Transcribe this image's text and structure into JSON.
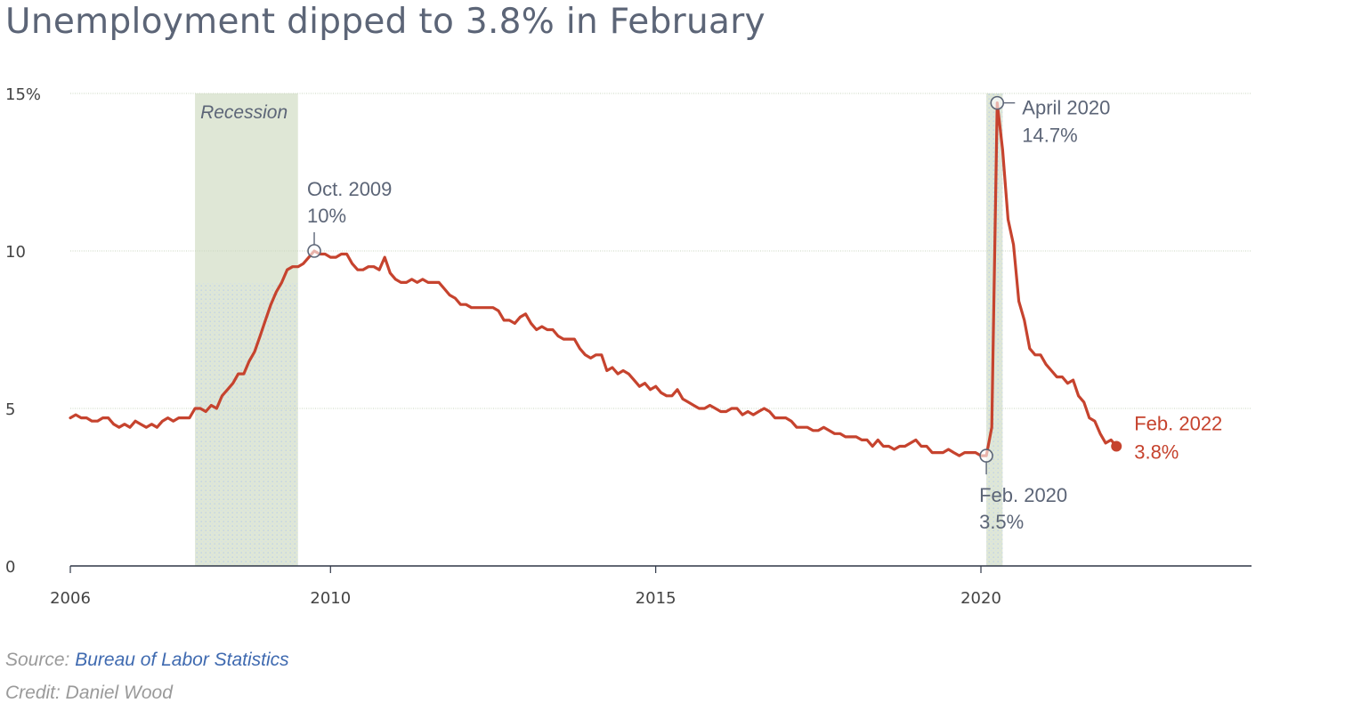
{
  "title": "Unemployment dipped to 3.8% in February",
  "footer": {
    "source_prefix": "Source: ",
    "source_link": "Bureau of Labor Statistics",
    "credit": "Credit: Daniel Wood"
  },
  "colors": {
    "line": "#c6432e",
    "recession_fill": "#dfe7d6",
    "recession_dots": "#c5d5e3",
    "grid": "#c9d6c0",
    "axis": "#2f3747",
    "annotation": "#5c6577"
  },
  "chart_data": {
    "type": "line",
    "title": "Unemployment dipped to 3.8% in February",
    "xlabel": "",
    "ylabel": "",
    "xlim": [
      2006.0,
      2022.6
    ],
    "ylim": [
      0,
      15
    ],
    "x_ticks": [
      2006,
      2010,
      2015,
      2020
    ],
    "x_tick_labels": [
      "2006",
      "2010",
      "2015",
      "2020"
    ],
    "y_ticks": [
      0,
      5,
      10,
      15
    ],
    "y_tick_labels": [
      "0",
      "5",
      "10",
      "15%"
    ],
    "grid": "horizontal",
    "recessions": [
      {
        "start": 2007.917,
        "end": 2009.5,
        "label": "Recession"
      },
      {
        "start": 2020.083,
        "end": 2020.333,
        "label": ""
      }
    ],
    "series": [
      {
        "points": [
          [
            2006.0,
            4.7
          ],
          [
            2006.083,
            4.8
          ],
          [
            2006.167,
            4.7
          ],
          [
            2006.25,
            4.7
          ],
          [
            2006.333,
            4.6
          ],
          [
            2006.417,
            4.6
          ],
          [
            2006.5,
            4.7
          ],
          [
            2006.583,
            4.7
          ],
          [
            2006.667,
            4.5
          ],
          [
            2006.75,
            4.4
          ],
          [
            2006.833,
            4.5
          ],
          [
            2006.917,
            4.4
          ],
          [
            2007.0,
            4.6
          ],
          [
            2007.083,
            4.5
          ],
          [
            2007.167,
            4.4
          ],
          [
            2007.25,
            4.5
          ],
          [
            2007.333,
            4.4
          ],
          [
            2007.417,
            4.6
          ],
          [
            2007.5,
            4.7
          ],
          [
            2007.583,
            4.6
          ],
          [
            2007.667,
            4.7
          ],
          [
            2007.75,
            4.7
          ],
          [
            2007.833,
            4.7
          ],
          [
            2007.917,
            5.0
          ],
          [
            2008.0,
            5.0
          ],
          [
            2008.083,
            4.9
          ],
          [
            2008.167,
            5.1
          ],
          [
            2008.25,
            5.0
          ],
          [
            2008.333,
            5.4
          ],
          [
            2008.417,
            5.6
          ],
          [
            2008.5,
            5.8
          ],
          [
            2008.583,
            6.1
          ],
          [
            2008.667,
            6.1
          ],
          [
            2008.75,
            6.5
          ],
          [
            2008.833,
            6.8
          ],
          [
            2008.917,
            7.3
          ],
          [
            2009.0,
            7.8
          ],
          [
            2009.083,
            8.3
          ],
          [
            2009.167,
            8.7
          ],
          [
            2009.25,
            9.0
          ],
          [
            2009.333,
            9.4
          ],
          [
            2009.417,
            9.5
          ],
          [
            2009.5,
            9.5
          ],
          [
            2009.583,
            9.6
          ],
          [
            2009.667,
            9.8
          ],
          [
            2009.75,
            10.0
          ],
          [
            2009.833,
            9.9
          ],
          [
            2009.917,
            9.9
          ],
          [
            2010.0,
            9.8
          ],
          [
            2010.083,
            9.8
          ],
          [
            2010.167,
            9.9
          ],
          [
            2010.25,
            9.9
          ],
          [
            2010.333,
            9.6
          ],
          [
            2010.417,
            9.4
          ],
          [
            2010.5,
            9.4
          ],
          [
            2010.583,
            9.5
          ],
          [
            2010.667,
            9.5
          ],
          [
            2010.75,
            9.4
          ],
          [
            2010.833,
            9.8
          ],
          [
            2010.917,
            9.3
          ],
          [
            2011.0,
            9.1
          ],
          [
            2011.083,
            9.0
          ],
          [
            2011.167,
            9.0
          ],
          [
            2011.25,
            9.1
          ],
          [
            2011.333,
            9.0
          ],
          [
            2011.417,
            9.1
          ],
          [
            2011.5,
            9.0
          ],
          [
            2011.583,
            9.0
          ],
          [
            2011.667,
            9.0
          ],
          [
            2011.75,
            8.8
          ],
          [
            2011.833,
            8.6
          ],
          [
            2011.917,
            8.5
          ],
          [
            2012.0,
            8.3
          ],
          [
            2012.083,
            8.3
          ],
          [
            2012.167,
            8.2
          ],
          [
            2012.25,
            8.2
          ],
          [
            2012.333,
            8.2
          ],
          [
            2012.417,
            8.2
          ],
          [
            2012.5,
            8.2
          ],
          [
            2012.583,
            8.1
          ],
          [
            2012.667,
            7.8
          ],
          [
            2012.75,
            7.8
          ],
          [
            2012.833,
            7.7
          ],
          [
            2012.917,
            7.9
          ],
          [
            2013.0,
            8.0
          ],
          [
            2013.083,
            7.7
          ],
          [
            2013.167,
            7.5
          ],
          [
            2013.25,
            7.6
          ],
          [
            2013.333,
            7.5
          ],
          [
            2013.417,
            7.5
          ],
          [
            2013.5,
            7.3
          ],
          [
            2013.583,
            7.2
          ],
          [
            2013.667,
            7.2
          ],
          [
            2013.75,
            7.2
          ],
          [
            2013.833,
            6.9
          ],
          [
            2013.917,
            6.7
          ],
          [
            2014.0,
            6.6
          ],
          [
            2014.083,
            6.7
          ],
          [
            2014.167,
            6.7
          ],
          [
            2014.25,
            6.2
          ],
          [
            2014.333,
            6.3
          ],
          [
            2014.417,
            6.1
          ],
          [
            2014.5,
            6.2
          ],
          [
            2014.583,
            6.1
          ],
          [
            2014.667,
            5.9
          ],
          [
            2014.75,
            5.7
          ],
          [
            2014.833,
            5.8
          ],
          [
            2014.917,
            5.6
          ],
          [
            2015.0,
            5.7
          ],
          [
            2015.083,
            5.5
          ],
          [
            2015.167,
            5.4
          ],
          [
            2015.25,
            5.4
          ],
          [
            2015.333,
            5.6
          ],
          [
            2015.417,
            5.3
          ],
          [
            2015.5,
            5.2
          ],
          [
            2015.583,
            5.1
          ],
          [
            2015.667,
            5.0
          ],
          [
            2015.75,
            5.0
          ],
          [
            2015.833,
            5.1
          ],
          [
            2015.917,
            5.0
          ],
          [
            2016.0,
            4.9
          ],
          [
            2016.083,
            4.9
          ],
          [
            2016.167,
            5.0
          ],
          [
            2016.25,
            5.0
          ],
          [
            2016.333,
            4.8
          ],
          [
            2016.417,
            4.9
          ],
          [
            2016.5,
            4.8
          ],
          [
            2016.583,
            4.9
          ],
          [
            2016.667,
            5.0
          ],
          [
            2016.75,
            4.9
          ],
          [
            2016.833,
            4.7
          ],
          [
            2016.917,
            4.7
          ],
          [
            2017.0,
            4.7
          ],
          [
            2017.083,
            4.6
          ],
          [
            2017.167,
            4.4
          ],
          [
            2017.25,
            4.4
          ],
          [
            2017.333,
            4.4
          ],
          [
            2017.417,
            4.3
          ],
          [
            2017.5,
            4.3
          ],
          [
            2017.583,
            4.4
          ],
          [
            2017.667,
            4.3
          ],
          [
            2017.75,
            4.2
          ],
          [
            2017.833,
            4.2
          ],
          [
            2017.917,
            4.1
          ],
          [
            2018.0,
            4.1
          ],
          [
            2018.083,
            4.1
          ],
          [
            2018.167,
            4.0
          ],
          [
            2018.25,
            4.0
          ],
          [
            2018.333,
            3.8
          ],
          [
            2018.417,
            4.0
          ],
          [
            2018.5,
            3.8
          ],
          [
            2018.583,
            3.8
          ],
          [
            2018.667,
            3.7
          ],
          [
            2018.75,
            3.8
          ],
          [
            2018.833,
            3.8
          ],
          [
            2018.917,
            3.9
          ],
          [
            2019.0,
            4.0
          ],
          [
            2019.083,
            3.8
          ],
          [
            2019.167,
            3.8
          ],
          [
            2019.25,
            3.6
          ],
          [
            2019.333,
            3.6
          ],
          [
            2019.417,
            3.6
          ],
          [
            2019.5,
            3.7
          ],
          [
            2019.583,
            3.6
          ],
          [
            2019.667,
            3.5
          ],
          [
            2019.75,
            3.6
          ],
          [
            2019.833,
            3.6
          ],
          [
            2019.917,
            3.6
          ],
          [
            2020.0,
            3.5
          ],
          [
            2020.083,
            3.5
          ],
          [
            2020.167,
            4.4
          ],
          [
            2020.25,
            14.7
          ],
          [
            2020.333,
            13.2
          ],
          [
            2020.417,
            11.0
          ],
          [
            2020.5,
            10.2
          ],
          [
            2020.583,
            8.4
          ],
          [
            2020.667,
            7.8
          ],
          [
            2020.75,
            6.9
          ],
          [
            2020.833,
            6.7
          ],
          [
            2020.917,
            6.7
          ],
          [
            2021.0,
            6.4
          ],
          [
            2021.083,
            6.2
          ],
          [
            2021.167,
            6.0
          ],
          [
            2021.25,
            6.0
          ],
          [
            2021.333,
            5.8
          ],
          [
            2021.417,
            5.9
          ],
          [
            2021.5,
            5.4
          ],
          [
            2021.583,
            5.2
          ],
          [
            2021.667,
            4.7
          ],
          [
            2021.75,
            4.6
          ],
          [
            2021.833,
            4.2
          ],
          [
            2021.917,
            3.9
          ],
          [
            2022.0,
            4.0
          ],
          [
            2022.083,
            3.8
          ]
        ]
      }
    ],
    "annotations": [
      {
        "x": 2009.75,
        "y": 10.0,
        "line1": "Oct. 2009",
        "line2": "10%",
        "position": "above"
      },
      {
        "x": 2020.083,
        "y": 3.5,
        "line1": "Feb. 2020",
        "line2": "3.5%",
        "position": "below"
      },
      {
        "x": 2020.25,
        "y": 14.7,
        "line1": "April 2020",
        "line2": "14.7%",
        "position": "right"
      },
      {
        "x": 2022.083,
        "y": 3.8,
        "line1": "Feb. 2022",
        "line2": "3.8%",
        "position": "right-end"
      }
    ]
  }
}
